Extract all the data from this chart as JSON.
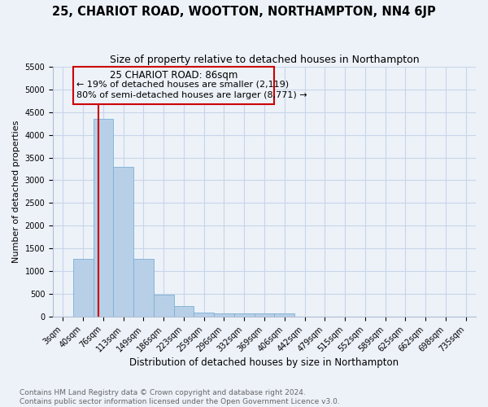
{
  "title": "25, CHARIOT ROAD, WOOTTON, NORTHAMPTON, NN4 6JP",
  "subtitle": "Size of property relative to detached houses in Northampton",
  "xlabel": "Distribution of detached houses by size in Northampton",
  "ylabel": "Number of detached properties",
  "bar_color": "#b8cfe8",
  "bar_edge_color": "#7aafd4",
  "categories": [
    "3sqm",
    "40sqm",
    "76sqm",
    "113sqm",
    "149sqm",
    "186sqm",
    "223sqm",
    "259sqm",
    "296sqm",
    "332sqm",
    "369sqm",
    "406sqm",
    "442sqm",
    "479sqm",
    "515sqm",
    "552sqm",
    "589sqm",
    "625sqm",
    "662sqm",
    "698sqm",
    "735sqm"
  ],
  "bar_values": [
    0,
    1270,
    4350,
    3300,
    1270,
    480,
    230,
    100,
    70,
    70,
    70,
    70,
    0,
    0,
    0,
    0,
    0,
    0,
    0,
    0,
    0
  ],
  "ylim": [
    0,
    5500
  ],
  "yticks": [
    0,
    500,
    1000,
    1500,
    2000,
    2500,
    3000,
    3500,
    4000,
    4500,
    5000,
    5500
  ],
  "property_label": "25 CHARIOT ROAD: 86sqm",
  "annotation_line1": "← 19% of detached houses are smaller (2,119)",
  "annotation_line2": "80% of semi-detached houses are larger (8,771) →",
  "annotation_box_color": "#cc0000",
  "vline_color": "#cc0000",
  "grid_color": "#c8d4e8",
  "background_color": "#edf2f9",
  "footer_line1": "Contains HM Land Registry data © Crown copyright and database right 2024.",
  "footer_line2": "Contains public sector information licensed under the Open Government Licence v3.0.",
  "title_fontsize": 10.5,
  "subtitle_fontsize": 9,
  "xlabel_fontsize": 8.5,
  "ylabel_fontsize": 8,
  "tick_fontsize": 7,
  "footer_fontsize": 6.5,
  "annotation_fontsize": 8.5
}
